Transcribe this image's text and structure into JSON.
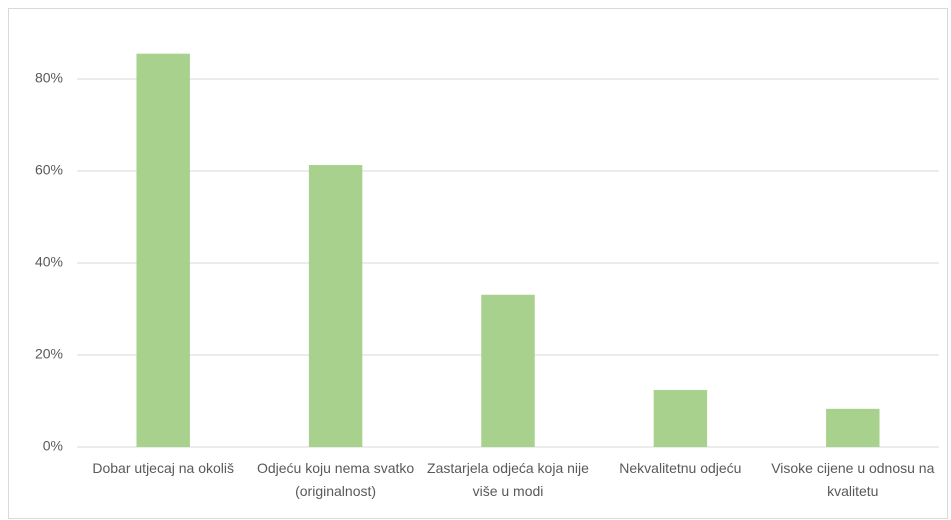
{
  "chart_data": {
    "type": "bar",
    "categories": [
      "Dobar utjecaj na okoliš",
      "Odjeću koju nema svatko (originalnost)",
      "Zastarjela odjeća koja nije više u modi",
      "Nekvalitetnu odjeću",
      "Visoke cijene u odnosu na kvalitetu"
    ],
    "values": [
      85.5,
      61.3,
      33.1,
      12.4,
      8.3
    ],
    "color": "#a9d18e",
    "ylim": [
      0,
      90
    ],
    "yticks": [
      {
        "value": 0,
        "label": "0%"
      },
      {
        "value": 20,
        "label": "20%"
      },
      {
        "value": 40,
        "label": "40%"
      },
      {
        "value": 60,
        "label": "60%"
      },
      {
        "value": 80,
        "label": "80%"
      }
    ],
    "grid": true
  }
}
